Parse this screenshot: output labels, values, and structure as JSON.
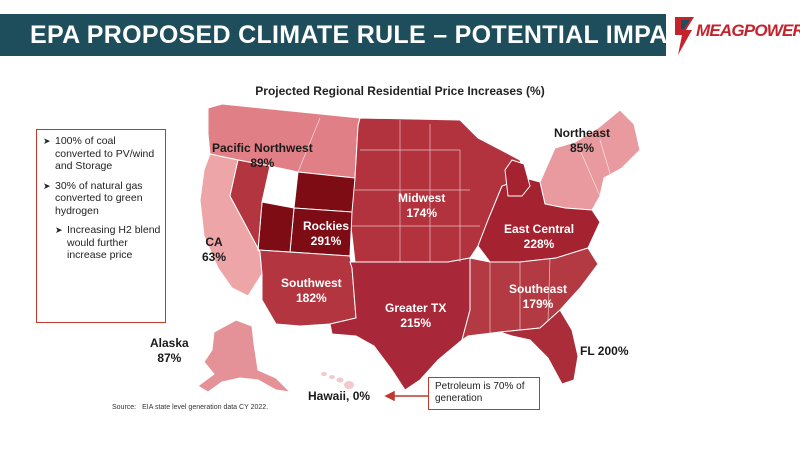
{
  "banner": {
    "title": "EPA PROPOSED CLIMATE RULE – POTENTIAL IMPACT"
  },
  "logo": {
    "text": "MEAGPOWER"
  },
  "map": {
    "title": "Projected Regional Residential Price Increases (%)",
    "regions": [
      {
        "name": "Pacific Northwest",
        "value": "89%",
        "color": "#e07f86"
      },
      {
        "name": "Northeast",
        "value": "85%",
        "color": "#e89a9e"
      },
      {
        "name": "Midwest",
        "value": "174%",
        "color": "#b2323e"
      },
      {
        "name": "Rockies",
        "value": "291%",
        "color": "#7e0c15"
      },
      {
        "name": "CA",
        "value": "63%",
        "color": "#eda5a8"
      },
      {
        "name": "East Central",
        "value": "228%",
        "color": "#a52230"
      },
      {
        "name": "Southwest",
        "value": "182%",
        "color": "#b3353f"
      },
      {
        "name": "Greater TX",
        "value": "215%",
        "color": "#a8283a"
      },
      {
        "name": "Southeast",
        "value": "179%",
        "color": "#b33a43"
      },
      {
        "name": "Alaska",
        "value": "87%",
        "color": "#e49297"
      },
      {
        "name": "Hawaii",
        "value": "0%",
        "color": "#f3c9cb"
      },
      {
        "name": "FL",
        "value": "200%",
        "color": "#aa2d39"
      }
    ]
  },
  "bullets": [
    {
      "text": "100% of coal converted to PV/wind and Storage",
      "level": 1
    },
    {
      "text": "30% of natural gas converted to green hydrogen",
      "level": 1
    },
    {
      "text": "Increasing H2 blend would further increase price",
      "level": 2
    }
  ],
  "callout": {
    "text": "Petroleum is 70% of generation"
  },
  "source": {
    "label": "Source:",
    "text": "EIA state level generation data CY 2022."
  }
}
